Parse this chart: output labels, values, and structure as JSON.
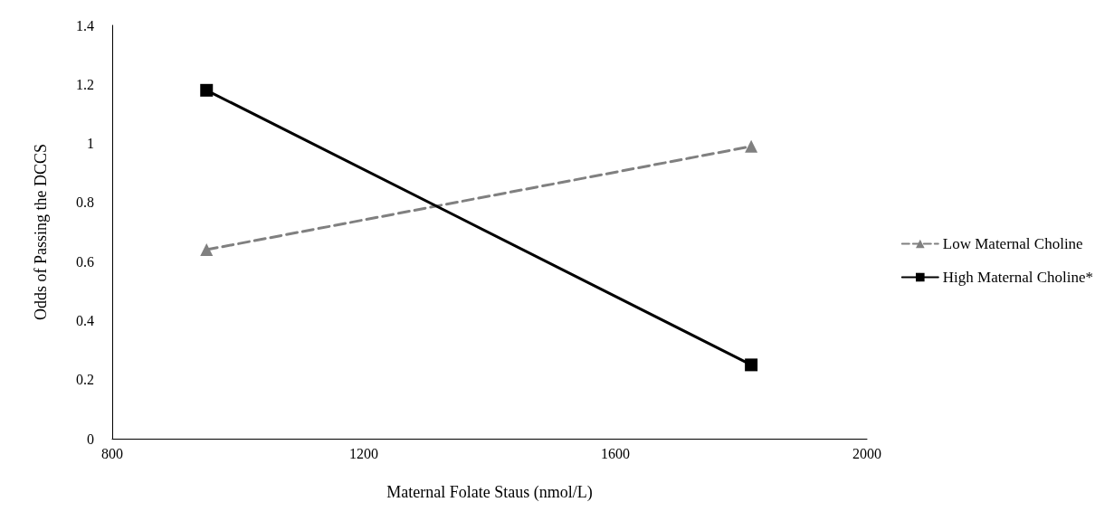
{
  "chart_data": {
    "type": "line",
    "xlabel": "Maternal Folate Staus (nmol/L)",
    "ylabel": "Odds of Passing the DCCS",
    "x": [
      950,
      1816
    ],
    "series": [
      {
        "name": "Low Maternal Choline",
        "color": "#808080",
        "values": [
          0.64,
          0.99
        ],
        "marker": "triangle",
        "line_style": "dashed"
      },
      {
        "name": "High Maternal Choline*",
        "color": "#000000",
        "values": [
          1.18,
          0.25
        ],
        "marker": "square",
        "line_style": "solid"
      }
    ],
    "xlim": [
      800,
      2000
    ],
    "xticks": [
      800,
      1200,
      1600,
      2000
    ],
    "ylim": [
      0,
      1.4
    ],
    "yticks": [
      0,
      0.2,
      0.4,
      0.6,
      0.8,
      1,
      1.2,
      1.4
    ],
    "grid": false,
    "legend": "right"
  }
}
